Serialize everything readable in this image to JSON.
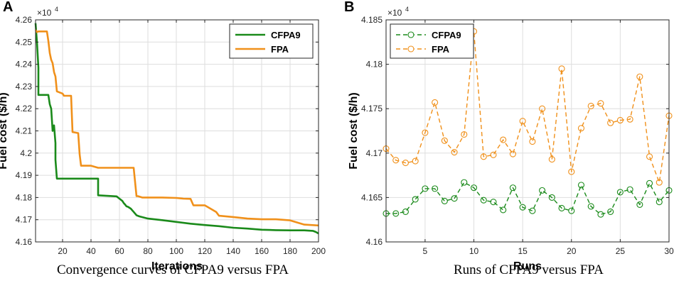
{
  "figure": {
    "caption_a": "Convergence curves of CFPA9 versus FPA",
    "caption_b": "Runs of CFPA9 versus FPA"
  },
  "colors": {
    "cfpa9": "#1a8a1a",
    "fpa": "#f0901a",
    "grid": "#dedede",
    "axis": "#262626"
  },
  "chart_data": [
    {
      "type": "line",
      "panel_label": "A",
      "xlabel": "Iterations",
      "ylabel": "Fuel cost ($/h)",
      "multiplier": "×10",
      "multiplier_exp": "4",
      "xlim": [
        1,
        200
      ],
      "ylim": [
        4.16,
        4.26
      ],
      "xticks": [
        20,
        40,
        60,
        80,
        100,
        120,
        140,
        160,
        180,
        200
      ],
      "yticks": [
        4.16,
        4.17,
        4.18,
        4.19,
        4.2,
        4.21,
        4.22,
        4.23,
        4.24,
        4.25,
        4.26
      ],
      "ytick_labels": [
        "4.16",
        "4.17",
        "4.18",
        "4.19",
        "4.2",
        "4.21",
        "4.22",
        "4.23",
        "4.24",
        "4.25",
        "4.26"
      ],
      "grid": true,
      "legend_position": "top-right",
      "series": [
        {
          "name": "CFPA9",
          "color": "#1a8a1a",
          "style": "solid",
          "x": [
            1,
            2,
            3,
            3,
            8,
            8,
            10,
            11,
            12,
            13,
            14,
            15,
            15,
            16,
            17,
            40,
            45,
            45,
            58,
            60,
            62,
            63,
            64,
            65,
            66,
            68,
            70,
            72,
            74,
            80,
            90,
            100,
            110,
            120,
            130,
            140,
            150,
            160,
            170,
            180,
            190,
            196,
            198,
            200
          ],
          "y": [
            4.2585,
            4.25,
            4.2385,
            4.2262,
            4.2262,
            4.2262,
            4.2262,
            4.222,
            4.22,
            4.21,
            4.2125,
            4.2045,
            4.197,
            4.1885,
            4.1885,
            4.1885,
            4.1885,
            4.181,
            4.1805,
            4.1795,
            4.1785,
            4.1775,
            4.1768,
            4.176,
            4.1758,
            4.175,
            4.1735,
            4.172,
            4.1715,
            4.1705,
            4.1698,
            4.169,
            4.1682,
            4.1676,
            4.1671,
            4.1664,
            4.166,
            4.1655,
            4.1653,
            4.1652,
            4.1652,
            4.165,
            4.1645,
            4.1638
          ]
        },
        {
          "name": "FPA",
          "color": "#f0901a",
          "style": "solid",
          "x": [
            1,
            2,
            3,
            4,
            9,
            10,
            11,
            12,
            13,
            14,
            15,
            16,
            20,
            21,
            26,
            27,
            31,
            32,
            33,
            40,
            45,
            67,
            70,
            72,
            73,
            76,
            80,
            90,
            100,
            105,
            110,
            112,
            120,
            128,
            130,
            140,
            150,
            160,
            170,
            180,
            190,
            200
          ],
          "y": [
            4.2555,
            4.2545,
            4.2548,
            4.2548,
            4.2548,
            4.2505,
            4.245,
            4.242,
            4.2405,
            4.2365,
            4.2345,
            4.2278,
            4.2268,
            4.2258,
            4.2258,
            4.2095,
            4.209,
            4.1995,
            4.1943,
            4.1943,
            4.1934,
            4.1934,
            4.1934,
            4.1806,
            4.1806,
            4.18,
            4.18,
            4.18,
            4.1798,
            4.1795,
            4.1794,
            4.1765,
            4.1765,
            4.1735,
            4.1718,
            4.1712,
            4.1705,
            4.1702,
            4.1702,
            4.1697,
            4.1678,
            4.1674
          ]
        }
      ]
    },
    {
      "type": "line",
      "panel_label": "B",
      "xlabel": "Runs",
      "ylabel": "Fuel cost ($/h)",
      "multiplier": "×10",
      "multiplier_exp": "4",
      "xlim": [
        1,
        30
      ],
      "ylim": [
        4.16,
        4.185
      ],
      "xticks": [
        5,
        10,
        15,
        20,
        25,
        30
      ],
      "yticks": [
        4.16,
        4.165,
        4.17,
        4.175,
        4.18,
        4.185
      ],
      "ytick_labels": [
        "4.16",
        "4.165",
        "4.17",
        "4.175",
        "4.18",
        "4.185"
      ],
      "grid": true,
      "legend_position": "top-left",
      "series": [
        {
          "name": "CFPA9",
          "color": "#1a8a1a",
          "style": "dashed",
          "marker": "circle",
          "x": [
            1,
            2,
            3,
            4,
            5,
            6,
            7,
            8,
            9,
            10,
            11,
            12,
            13,
            14,
            15,
            16,
            17,
            18,
            19,
            20,
            21,
            22,
            23,
            24,
            25,
            26,
            27,
            28,
            29,
            30
          ],
          "y": [
            4.1632,
            4.1632,
            4.1634,
            4.1648,
            4.166,
            4.166,
            4.1646,
            4.1649,
            4.1667,
            4.1661,
            4.1647,
            4.1645,
            4.1636,
            4.1661,
            4.1639,
            4.1635,
            4.1658,
            4.165,
            4.1638,
            4.1635,
            4.1664,
            4.164,
            4.1631,
            4.1634,
            4.1656,
            4.1659,
            4.1642,
            4.1666,
            4.1645,
            4.1658
          ]
        },
        {
          "name": "FPA",
          "color": "#f0901a",
          "style": "dashed",
          "marker": "circle",
          "x": [
            1,
            2,
            3,
            4,
            5,
            6,
            7,
            8,
            9,
            10,
            11,
            12,
            13,
            14,
            15,
            16,
            17,
            18,
            19,
            20,
            21,
            22,
            23,
            24,
            25,
            26,
            27,
            28,
            29,
            30
          ],
          "y": [
            4.1705,
            4.1692,
            4.1689,
            4.1691,
            4.1723,
            4.1757,
            4.1714,
            4.1701,
            4.1721,
            4.1837,
            4.1696,
            4.1698,
            4.1715,
            4.1699,
            4.1736,
            4.1713,
            4.175,
            4.1693,
            4.1795,
            4.1679,
            4.1728,
            4.1753,
            4.1756,
            4.1734,
            4.1737,
            4.1738,
            4.1786,
            4.1696,
            4.1667,
            4.1742
          ]
        }
      ]
    }
  ]
}
